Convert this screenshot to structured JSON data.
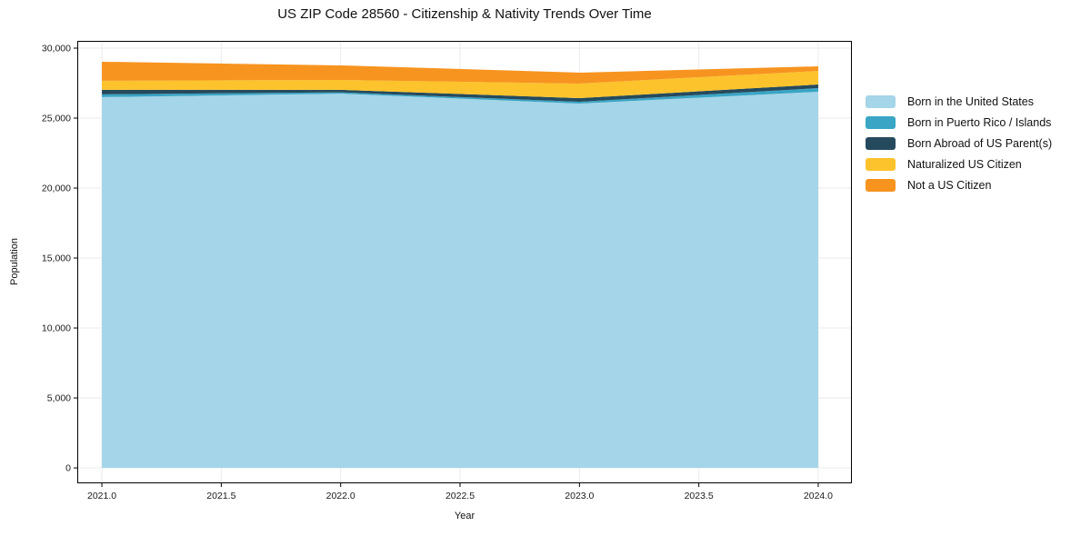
{
  "title": "US ZIP Code 28560 - Citizenship & Nativity Trends Over Time",
  "chart_data": {
    "type": "area",
    "stacked": true,
    "title": "US ZIP Code 28560 - Citizenship & Nativity Trends Over Time",
    "xlabel": "Year",
    "ylabel": "Population",
    "x": [
      2021,
      2022,
      2023,
      2024
    ],
    "series": [
      {
        "name": "Born in the United States",
        "color": "#a5d5e8",
        "values": [
          26500,
          26750,
          26040,
          26880
        ]
      },
      {
        "name": "Born in Puerto Rico / Islands",
        "color": "#3aa5c5",
        "values": [
          200,
          90,
          130,
          260
        ]
      },
      {
        "name": "Born Abroad of US Parent(s)",
        "color": "#264a5d",
        "values": [
          320,
          180,
          260,
          260
        ]
      },
      {
        "name": "Naturalized US Citizen",
        "color": "#fcc32c",
        "values": [
          650,
          710,
          1040,
          975
        ]
      },
      {
        "name": "Not a US Citizen",
        "color": "#f79420",
        "values": [
          1360,
          1040,
          780,
          325
        ]
      }
    ],
    "totals": [
      29030,
      28770,
      28250,
      28700
    ],
    "xticks": [
      2021.0,
      2021.5,
      2022.0,
      2022.5,
      2023.0,
      2023.5,
      2024.0
    ],
    "xtick_labels": [
      "2021.0",
      "2021.5",
      "2022.0",
      "2022.5",
      "2023.0",
      "2023.5",
      "2024.0"
    ],
    "yticks": [
      0,
      5000,
      10000,
      15000,
      20000,
      25000,
      30000
    ],
    "ytick_labels": [
      "0",
      "5,000",
      "10,000",
      "15,000",
      "20,000",
      "25,000",
      "30,000"
    ],
    "xlim": [
      2020.897,
      2024.141
    ],
    "ylim": [
      -1100,
      30520
    ],
    "grid": true,
    "grid_color": "#ebebeb",
    "spine_color": "#000000",
    "tick_label_color": "#1a1a1a",
    "legend_position": "right-outside"
  }
}
